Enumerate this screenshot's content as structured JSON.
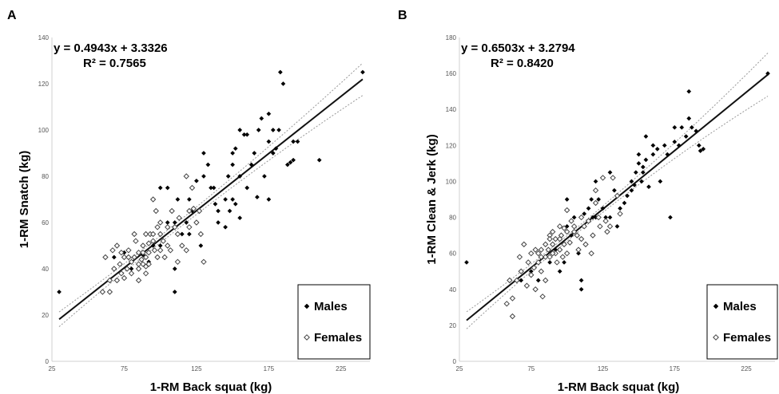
{
  "chart_data": [
    {
      "panel": "A",
      "type": "scatter",
      "equation": "y = 0.4943x + 3.3326",
      "r2": "R² = 0.7565",
      "xlabel": "1-RM Back squat (kg)",
      "ylabel": "1-RM Snatch (kg)",
      "xlim": [
        25,
        245
      ],
      "ylim": [
        0,
        140
      ],
      "xticks": [
        25,
        75,
        125,
        175,
        225
      ],
      "yticks": [
        0,
        20,
        40,
        60,
        80,
        100,
        120,
        140
      ],
      "grid": false,
      "legend_position": "bottom-right",
      "fit": {
        "slope": 0.4943,
        "intercept": 3.3326,
        "x_range": [
          30,
          240
        ],
        "ci_halfwidth_center": 1.5,
        "ci_halfwidth_end": 7.0,
        "x_center": 105
      },
      "series": [
        {
          "name": "Males",
          "marker": "filled-diamond",
          "points": [
            [
              30,
              30
            ],
            [
              68,
              45
            ],
            [
              75,
              47
            ],
            [
              80,
              40
            ],
            [
              85,
              42
            ],
            [
              88,
              46
            ],
            [
              90,
              45
            ],
            [
              92,
              43
            ],
            [
              95,
              50
            ],
            [
              100,
              50
            ],
            [
              100,
              75
            ],
            [
              105,
              60
            ],
            [
              105,
              75
            ],
            [
              110,
              60
            ],
            [
              110,
              40
            ],
            [
              110,
              30
            ],
            [
              112,
              70
            ],
            [
              115,
              55
            ],
            [
              118,
              60
            ],
            [
              120,
              55
            ],
            [
              120,
              70
            ],
            [
              122,
              65
            ],
            [
              125,
              78
            ],
            [
              125,
              60
            ],
            [
              128,
              50
            ],
            [
              130,
              90
            ],
            [
              130,
              80
            ],
            [
              133,
              85
            ],
            [
              135,
              75
            ],
            [
              137,
              75
            ],
            [
              140,
              60
            ],
            [
              140,
              65
            ],
            [
              145,
              70
            ],
            [
              147,
              80
            ],
            [
              148,
              65
            ],
            [
              150,
              90
            ],
            [
              150,
              85
            ],
            [
              150,
              70
            ],
            [
              152,
              92
            ],
            [
              152,
              68
            ],
            [
              155,
              100
            ],
            [
              155,
              80
            ],
            [
              155,
              62
            ],
            [
              158,
              98
            ],
            [
              160,
              98
            ],
            [
              160,
              75
            ],
            [
              163,
              85
            ],
            [
              165,
              90
            ],
            [
              168,
              100
            ],
            [
              170,
              105
            ],
            [
              172,
              80
            ],
            [
              175,
              95
            ],
            [
              178,
              100
            ],
            [
              178,
              90
            ],
            [
              180,
              92
            ],
            [
              182,
              100
            ],
            [
              183,
              125
            ],
            [
              185,
              120
            ],
            [
              188,
              85
            ],
            [
              192,
              87
            ],
            [
              192,
              95
            ],
            [
              195,
              95
            ],
            [
              240,
              125
            ],
            [
              210,
              87
            ],
            [
              190,
              86
            ],
            [
              175,
              70
            ],
            [
              175,
              107
            ],
            [
              167,
              71
            ],
            [
              145,
              58
            ],
            [
              138,
              68
            ]
          ]
        },
        {
          "name": "Females",
          "marker": "open-diamond",
          "points": [
            [
              60,
              30
            ],
            [
              62,
              45
            ],
            [
              65,
              35
            ],
            [
              65,
              30
            ],
            [
              67,
              48
            ],
            [
              68,
              40
            ],
            [
              70,
              35
            ],
            [
              70,
              50
            ],
            [
              72,
              42
            ],
            [
              73,
              38
            ],
            [
              75,
              36
            ],
            [
              75,
              45
            ],
            [
              77,
              40
            ],
            [
              78,
              48
            ],
            [
              80,
              43
            ],
            [
              80,
              38
            ],
            [
              82,
              45
            ],
            [
              82,
              55
            ],
            [
              83,
              52
            ],
            [
              85,
              47
            ],
            [
              85,
              40
            ],
            [
              85,
              35
            ],
            [
              87,
              44
            ],
            [
              88,
              42
            ],
            [
              88,
              50
            ],
            [
              90,
              55
            ],
            [
              90,
              45
            ],
            [
              90,
              38
            ],
            [
              92,
              47
            ],
            [
              92,
              42
            ],
            [
              93,
              55
            ],
            [
              95,
              70
            ],
            [
              95,
              55
            ],
            [
              96,
              48
            ],
            [
              97,
              65
            ],
            [
              98,
              58
            ],
            [
              100,
              55
            ],
            [
              100,
              48
            ],
            [
              100,
              60
            ],
            [
              102,
              52
            ],
            [
              103,
              45
            ],
            [
              105,
              50
            ],
            [
              105,
              58
            ],
            [
              107,
              48
            ],
            [
              108,
              65
            ],
            [
              110,
              58
            ],
            [
              112,
              55
            ],
            [
              112,
              43
            ],
            [
              113,
              62
            ],
            [
              115,
              50
            ],
            [
              118,
              48
            ],
            [
              118,
              80
            ],
            [
              120,
              65
            ],
            [
              120,
              58
            ],
            [
              122,
              75
            ],
            [
              123,
              66
            ],
            [
              125,
              60
            ],
            [
              127,
              65
            ],
            [
              128,
              55
            ],
            [
              130,
              43
            ],
            [
              85,
              42
            ],
            [
              88,
              47
            ],
            [
              95,
              52
            ],
            [
              98,
              45
            ],
            [
              73,
              47
            ],
            [
              78,
              45
            ],
            [
              90,
              41
            ],
            [
              92,
              51
            ]
          ]
        }
      ]
    },
    {
      "panel": "B",
      "type": "scatter",
      "equation": "y = 0.6503x + 3.2794",
      "r2": "R² = 0.8420",
      "xlabel": "1-RM Back squat (kg)",
      "ylabel": "1-RM Clean & Jerk (kg)",
      "xlim": [
        25,
        245
      ],
      "ylim": [
        0,
        180
      ],
      "xticks": [
        25,
        75,
        125,
        175,
        225
      ],
      "yticks": [
        0,
        20,
        40,
        60,
        80,
        100,
        120,
        140,
        160,
        180
      ],
      "grid": false,
      "legend_position": "bottom-right",
      "fit": {
        "slope": 0.6503,
        "intercept": 3.2794,
        "x_range": [
          30,
          240
        ],
        "ci_halfwidth_center": 1.5,
        "ci_halfwidth_end": 12.0,
        "x_center": 105
      },
      "series": [
        {
          "name": "Males",
          "marker": "filled-diamond",
          "points": [
            [
              30,
              55
            ],
            [
              68,
              45
            ],
            [
              75,
              50
            ],
            [
              80,
              45
            ],
            [
              85,
              45
            ],
            [
              88,
              55
            ],
            [
              92,
              62
            ],
            [
              95,
              50
            ],
            [
              98,
              55
            ],
            [
              100,
              90
            ],
            [
              100,
              75
            ],
            [
              103,
              70
            ],
            [
              105,
              80
            ],
            [
              108,
              60
            ],
            [
              110,
              45
            ],
            [
              110,
              40
            ],
            [
              112,
              82
            ],
            [
              115,
              85
            ],
            [
              117,
              90
            ],
            [
              120,
              100
            ],
            [
              120,
              80
            ],
            [
              122,
              90
            ],
            [
              125,
              85
            ],
            [
              127,
              80
            ],
            [
              130,
              105
            ],
            [
              130,
              80
            ],
            [
              133,
              95
            ],
            [
              135,
              75
            ],
            [
              137,
              85
            ],
            [
              140,
              88
            ],
            [
              142,
              92
            ],
            [
              145,
              100
            ],
            [
              147,
              98
            ],
            [
              148,
              105
            ],
            [
              150,
              115
            ],
            [
              150,
              110
            ],
            [
              152,
              100
            ],
            [
              153,
              108
            ],
            [
              155,
              125
            ],
            [
              155,
              112
            ],
            [
              157,
              97
            ],
            [
              160,
              120
            ],
            [
              160,
              115
            ],
            [
              163,
              118
            ],
            [
              165,
              100
            ],
            [
              168,
              120
            ],
            [
              170,
              115
            ],
            [
              172,
              80
            ],
            [
              175,
              130
            ],
            [
              178,
              120
            ],
            [
              180,
              130
            ],
            [
              183,
              125
            ],
            [
              185,
              150
            ],
            [
              185,
              135
            ],
            [
              187,
              130
            ],
            [
              190,
              128
            ],
            [
              192,
              120
            ],
            [
              193,
              117
            ],
            [
              195,
              118
            ],
            [
              240,
              160
            ],
            [
              175,
              122
            ],
            [
              145,
              95
            ],
            [
              153,
              105
            ],
            [
              118,
              80
            ]
          ]
        },
        {
          "name": "Females",
          "marker": "open-diamond",
          "points": [
            [
              58,
              32
            ],
            [
              60,
              45
            ],
            [
              62,
              35
            ],
            [
              62,
              25
            ],
            [
              65,
              45
            ],
            [
              67,
              58
            ],
            [
              68,
              50
            ],
            [
              70,
              65
            ],
            [
              72,
              42
            ],
            [
              73,
              55
            ],
            [
              75,
              48
            ],
            [
              75,
              60
            ],
            [
              77,
              52
            ],
            [
              78,
              40
            ],
            [
              80,
              60
            ],
            [
              80,
              55
            ],
            [
              82,
              50
            ],
            [
              82,
              62
            ],
            [
              83,
              36
            ],
            [
              85,
              58
            ],
            [
              85,
              65
            ],
            [
              85,
              45
            ],
            [
              87,
              62
            ],
            [
              88,
              58
            ],
            [
              88,
              70
            ],
            [
              90,
              65
            ],
            [
              90,
              72
            ],
            [
              92,
              60
            ],
            [
              92,
              68
            ],
            [
              93,
              55
            ],
            [
              95,
              62
            ],
            [
              95,
              75
            ],
            [
              96,
              70
            ],
            [
              97,
              58
            ],
            [
              98,
              65
            ],
            [
              100,
              60
            ],
            [
              100,
              72
            ],
            [
              100,
              84
            ],
            [
              102,
              66
            ],
            [
              103,
              78
            ],
            [
              105,
              72
            ],
            [
              105,
              75
            ],
            [
              107,
              70
            ],
            [
              108,
              62
            ],
            [
              110,
              68
            ],
            [
              110,
              80
            ],
            [
              112,
              75
            ],
            [
              113,
              65
            ],
            [
              115,
              78
            ],
            [
              117,
              60
            ],
            [
              118,
              70
            ],
            [
              120,
              95
            ],
            [
              120,
              88
            ],
            [
              122,
              80
            ],
            [
              123,
              75
            ],
            [
              125,
              102
            ],
            [
              127,
              78
            ],
            [
              128,
              72
            ],
            [
              130,
              75
            ],
            [
              132,
              102
            ],
            [
              135,
              92
            ],
            [
              137,
              82
            ],
            [
              88,
              68
            ],
            [
              90,
              60
            ],
            [
              95,
              68
            ],
            [
              78,
              62
            ],
            [
              82,
              58
            ],
            [
              98,
              74
            ]
          ]
        }
      ]
    }
  ]
}
